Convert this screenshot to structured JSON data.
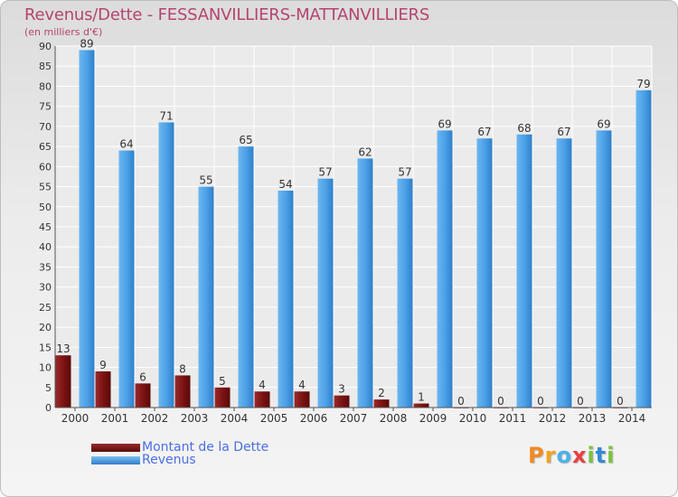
{
  "chart_data": {
    "type": "bar",
    "title": "Revenus/Dette - FESSANVILLIERS-MATTANVILLIERS",
    "subtitle": "(en milliers d'€)",
    "categories": [
      "2000",
      "2001",
      "2002",
      "2003",
      "2004",
      "2005",
      "2006",
      "2007",
      "2008",
      "2009",
      "2010",
      "2011",
      "2012",
      "2013",
      "2014"
    ],
    "series": [
      {
        "name": "Montant de la Dette",
        "color": "#7a1212",
        "values": [
          13,
          9,
          6,
          8,
          5,
          4,
          4,
          3,
          2,
          1,
          0,
          0,
          0,
          0,
          0
        ]
      },
      {
        "name": "Revenus",
        "color": "#4a9fe6",
        "values": [
          89,
          64,
          71,
          55,
          65,
          54,
          57,
          62,
          57,
          69,
          67,
          68,
          67,
          69,
          79
        ]
      }
    ],
    "ylim": [
      0,
      90
    ],
    "yticks": [
      0,
      5,
      10,
      15,
      20,
      25,
      30,
      35,
      40,
      45,
      50,
      55,
      60,
      65,
      70,
      75,
      80,
      85,
      90
    ],
    "grid": true,
    "legend": "bottom-left"
  },
  "logo": {
    "letters": [
      "P",
      "r",
      "o",
      "x",
      "i",
      "t",
      "i"
    ]
  }
}
